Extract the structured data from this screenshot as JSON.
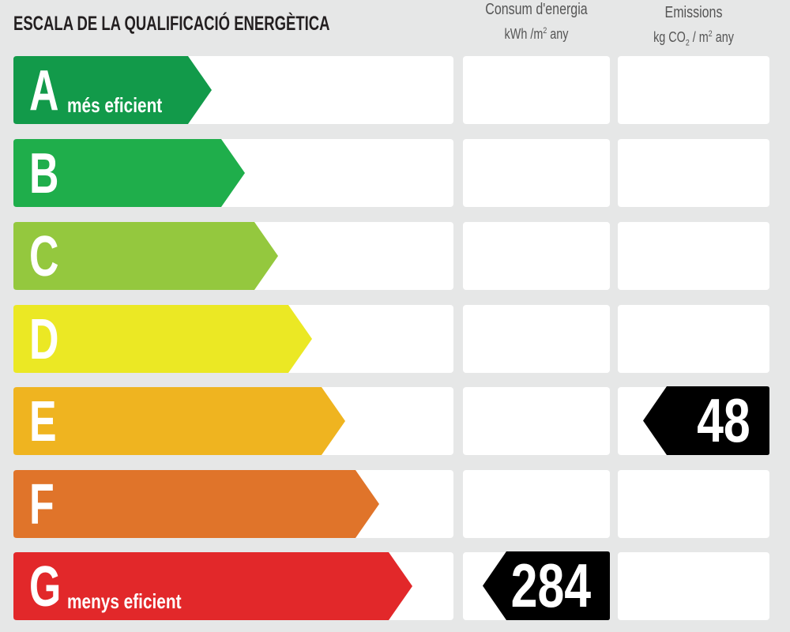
{
  "title": "ESCALA DE LA QUALIFICACIÓ ENERGÈTICA",
  "columns": {
    "energy": {
      "title": "Consum d'energia",
      "unit_main": "kWh /m",
      "unit_sup": "2",
      "unit_tail": " any"
    },
    "emissions": {
      "title": "Emissions",
      "unit_a": "kg CO",
      "unit_sub": "2",
      "unit_b": " / m",
      "unit_sup": "2",
      "unit_tail": " any"
    }
  },
  "classes": [
    {
      "letter": "A",
      "label": "més eficient",
      "color": "#129a4a"
    },
    {
      "letter": "B",
      "label": "",
      "color": "#1fae4b"
    },
    {
      "letter": "C",
      "label": "",
      "color": "#94c83e"
    },
    {
      "letter": "D",
      "label": "",
      "color": "#ebe824"
    },
    {
      "letter": "E",
      "label": "",
      "color": "#efb420"
    },
    {
      "letter": "F",
      "label": "",
      "color": "#e0742a"
    },
    {
      "letter": "G",
      "label": "menys eficient",
      "color": "#e2282a"
    }
  ],
  "ratings": {
    "energy": {
      "value": "284",
      "class": "G"
    },
    "emissions": {
      "value": "48",
      "class": "E"
    }
  }
}
